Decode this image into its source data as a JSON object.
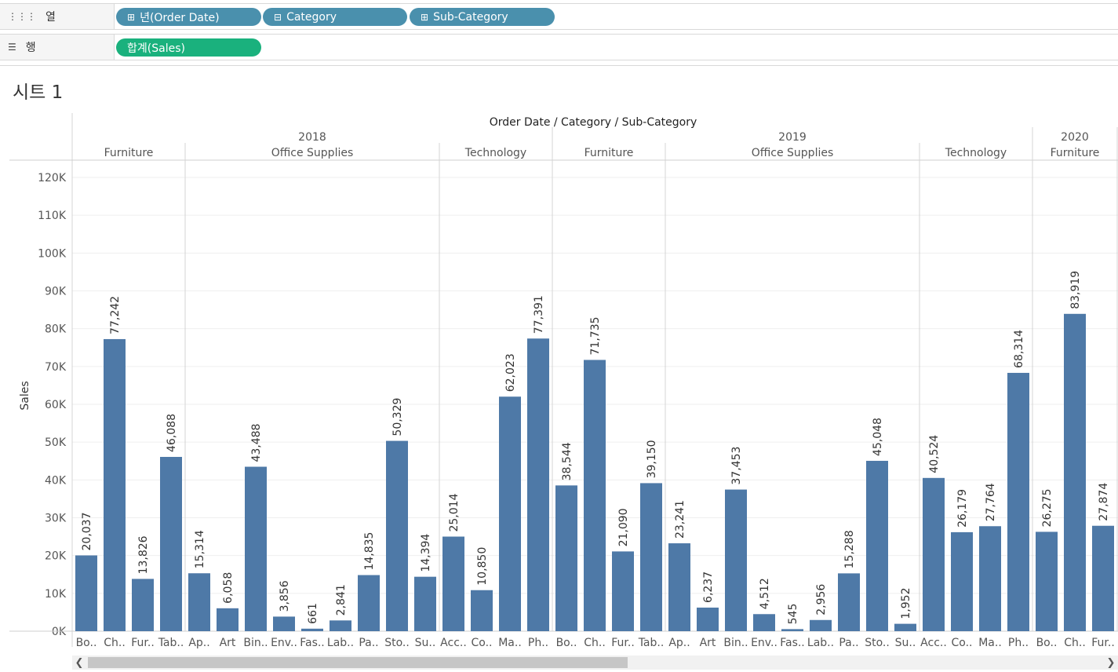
{
  "shelves": {
    "columns": {
      "label": "열",
      "icon": "columns-icon",
      "pills": [
        {
          "prefix": "⊞",
          "label": "년(Order Date)"
        },
        {
          "prefix": "⊟",
          "label": "Category"
        },
        {
          "prefix": "⊞",
          "label": "Sub-Category"
        }
      ]
    },
    "rows": {
      "label": "행",
      "icon": "rows-icon",
      "pills": [
        {
          "prefix": "",
          "label": "합계(Sales)"
        }
      ]
    }
  },
  "sheet": {
    "title": "시트 1"
  },
  "colors": {
    "bar": "#4e79a7",
    "pill_dimension": "#4a90ad",
    "pill_measure": "#1ab17d"
  },
  "chart_data": {
    "type": "bar",
    "title": "Order Date / Category / Sub-Category",
    "ylabel": "Sales",
    "ylim": [
      0,
      120000
    ],
    "yticks": [
      0,
      10000,
      20000,
      30000,
      40000,
      50000,
      60000,
      70000,
      80000,
      90000,
      100000,
      110000,
      120000
    ],
    "ytick_labels": [
      "0K",
      "10K",
      "20K",
      "30K",
      "40K",
      "50K",
      "60K",
      "70K",
      "80K",
      "90K",
      "100K",
      "110K",
      "120K"
    ],
    "gridlines": true,
    "years": [
      {
        "year": "2018",
        "categories": [
          {
            "name": "Furniture",
            "bars": [
              {
                "label": "Bo..",
                "value": 20037,
                "display": "20,037"
              },
              {
                "label": "Ch..",
                "value": 77242,
                "display": "77,242"
              },
              {
                "label": "Fur..",
                "value": 13826,
                "display": "13,826"
              },
              {
                "label": "Tab..",
                "value": 46088,
                "display": "46,088"
              }
            ]
          },
          {
            "name": "Office Supplies",
            "bars": [
              {
                "label": "Ap..",
                "value": 15314,
                "display": "15,314"
              },
              {
                "label": "Art",
                "value": 6058,
                "display": "6,058"
              },
              {
                "label": "Bin..",
                "value": 43488,
                "display": "43,488"
              },
              {
                "label": "Env..",
                "value": 3856,
                "display": "3,856"
              },
              {
                "label": "Fas..",
                "value": 661,
                "display": "661"
              },
              {
                "label": "Lab..",
                "value": 2841,
                "display": "2,841"
              },
              {
                "label": "Pa..",
                "value": 14835,
                "display": "14,835"
              },
              {
                "label": "Sto..",
                "value": 50329,
                "display": "50,329"
              },
              {
                "label": "Su..",
                "value": 14394,
                "display": "14,394"
              }
            ]
          },
          {
            "name": "Technology",
            "bars": [
              {
                "label": "Acc..",
                "value": 25014,
                "display": "25,014"
              },
              {
                "label": "Co..",
                "value": 10850,
                "display": "10,850"
              },
              {
                "label": "Ma..",
                "value": 62023,
                "display": "62,023"
              },
              {
                "label": "Ph..",
                "value": 77391,
                "display": "77,391"
              }
            ]
          }
        ]
      },
      {
        "year": "2019",
        "categories": [
          {
            "name": "Furniture",
            "bars": [
              {
                "label": "Bo..",
                "value": 38544,
                "display": "38,544"
              },
              {
                "label": "Ch..",
                "value": 71735,
                "display": "71,735"
              },
              {
                "label": "Fur..",
                "value": 21090,
                "display": "21,090"
              },
              {
                "label": "Tab..",
                "value": 39150,
                "display": "39,150"
              }
            ]
          },
          {
            "name": "Office Supplies",
            "bars": [
              {
                "label": "Ap..",
                "value": 23241,
                "display": "23,241"
              },
              {
                "label": "Art",
                "value": 6237,
                "display": "6,237"
              },
              {
                "label": "Bin..",
                "value": 37453,
                "display": "37,453"
              },
              {
                "label": "Env..",
                "value": 4512,
                "display": "4,512"
              },
              {
                "label": "Fas..",
                "value": 545,
                "display": "545"
              },
              {
                "label": "Lab..",
                "value": 2956,
                "display": "2,956"
              },
              {
                "label": "Pa..",
                "value": 15288,
                "display": "15,288"
              },
              {
                "label": "Sto..",
                "value": 45048,
                "display": "45,048"
              },
              {
                "label": "Su..",
                "value": 1952,
                "display": "1,952"
              }
            ]
          },
          {
            "name": "Technology",
            "bars": [
              {
                "label": "Acc..",
                "value": 40524,
                "display": "40,524"
              },
              {
                "label": "Co..",
                "value": 26179,
                "display": "26,179"
              },
              {
                "label": "Ma..",
                "value": 27764,
                "display": "27,764"
              },
              {
                "label": "Ph..",
                "value": 68314,
                "display": "68,314"
              }
            ]
          }
        ]
      },
      {
        "year": "2020",
        "categories": [
          {
            "name": "Furniture",
            "bars": [
              {
                "label": "Bo..",
                "value": 26275,
                "display": "26,275"
              },
              {
                "label": "Ch..",
                "value": 83919,
                "display": "83,919"
              },
              {
                "label": "Fur..",
                "value": 27874,
                "display": "27,874"
              }
            ]
          }
        ]
      }
    ]
  }
}
